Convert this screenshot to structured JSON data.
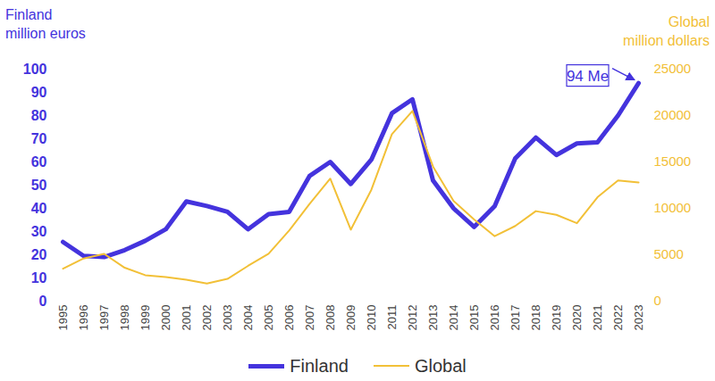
{
  "chart_data": {
    "type": "line",
    "categories": [
      "1995",
      "1996",
      "1997",
      "1998",
      "1999",
      "2000",
      "2001",
      "2002",
      "2003",
      "2004",
      "2005",
      "2006",
      "2007",
      "2008",
      "2009",
      "2010",
      "2011",
      "2012",
      "2013",
      "2014",
      "2015",
      "2016",
      "2017",
      "2018",
      "2019",
      "2020",
      "2021",
      "2022",
      "2023"
    ],
    "ylabel": "Finland\nmillion euros",
    "y2label": "Global\nmillion dollars",
    "ylim": [
      0,
      100
    ],
    "yticks": [
      0,
      10,
      20,
      30,
      40,
      50,
      60,
      70,
      80,
      90,
      100
    ],
    "y2lim": [
      0,
      25000
    ],
    "y2ticks": [
      0,
      5000,
      10000,
      15000,
      20000,
      25000
    ],
    "series": [
      {
        "name": "Finland",
        "color": "#4433dd",
        "values": [
          25.5,
          19.5,
          19,
          22,
          26,
          31,
          43,
          41,
          38.5,
          31,
          37.5,
          38.5,
          54,
          60,
          50.5,
          61,
          81,
          87,
          52,
          40,
          32,
          41,
          61.5,
          70.5,
          63,
          68,
          68.5,
          80,
          94
        ]
      },
      {
        "name": "Global",
        "color": "#f2c037",
        "axis": "y2",
        "values": [
          3500,
          4600,
          5100,
          3600,
          2800,
          2600,
          2300,
          1900,
          2400,
          3800,
          5100,
          7600,
          10500,
          13200,
          7700,
          12000,
          18000,
          20500,
          14500,
          10800,
          8800,
          7000,
          8100,
          9700,
          9300,
          8400,
          11200,
          13000,
          12800
        ]
      }
    ],
    "annotations": [
      {
        "text": "94 Me",
        "x": "2023",
        "y": 94
      }
    ],
    "legend": "bottom"
  }
}
